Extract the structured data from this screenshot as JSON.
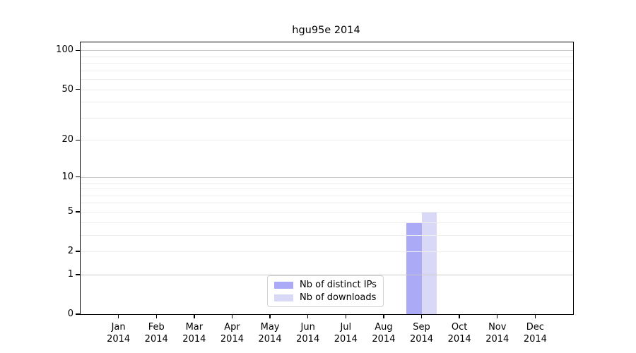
{
  "chart_data": {
    "type": "bar",
    "title": "hgu95e 2014",
    "categories": [
      "Jan",
      "Feb",
      "Mar",
      "Apr",
      "May",
      "Jun",
      "Jul",
      "Aug",
      "Sep",
      "Oct",
      "Nov",
      "Dec"
    ],
    "year_label": "2014",
    "series": [
      {
        "name": "Nb of distinct IPs",
        "color": "#aaaaf7",
        "values": [
          0,
          0,
          0,
          0,
          0,
          0,
          0,
          0,
          4,
          0,
          0,
          0
        ]
      },
      {
        "name": "Nb of downloads",
        "color": "#d9d9f7",
        "values": [
          0,
          0,
          0,
          0,
          0,
          0,
          0,
          0,
          5,
          0,
          0,
          0
        ]
      }
    ],
    "yscale": "log1p",
    "yticks": [
      0,
      1,
      2,
      5,
      10,
      20,
      50,
      100
    ],
    "minor_gridlines": [
      2,
      3,
      4,
      5,
      6,
      7,
      8,
      9,
      20,
      30,
      40,
      50,
      60,
      70,
      80,
      90
    ],
    "major_gridlines": [
      1,
      10,
      100
    ],
    "ylim": [
      0,
      115
    ],
    "grid": "horizontal",
    "legend_position": "bottom-center"
  },
  "colors": {
    "background": "#ffffff",
    "axis": "#000000",
    "grid_major": "#c9c9c9",
    "grid_minor": "#ededed",
    "bar_distinct_ips": "#aaaaf7",
    "bar_downloads": "#d9d9f7",
    "legend_border": "#d2d2d2"
  }
}
